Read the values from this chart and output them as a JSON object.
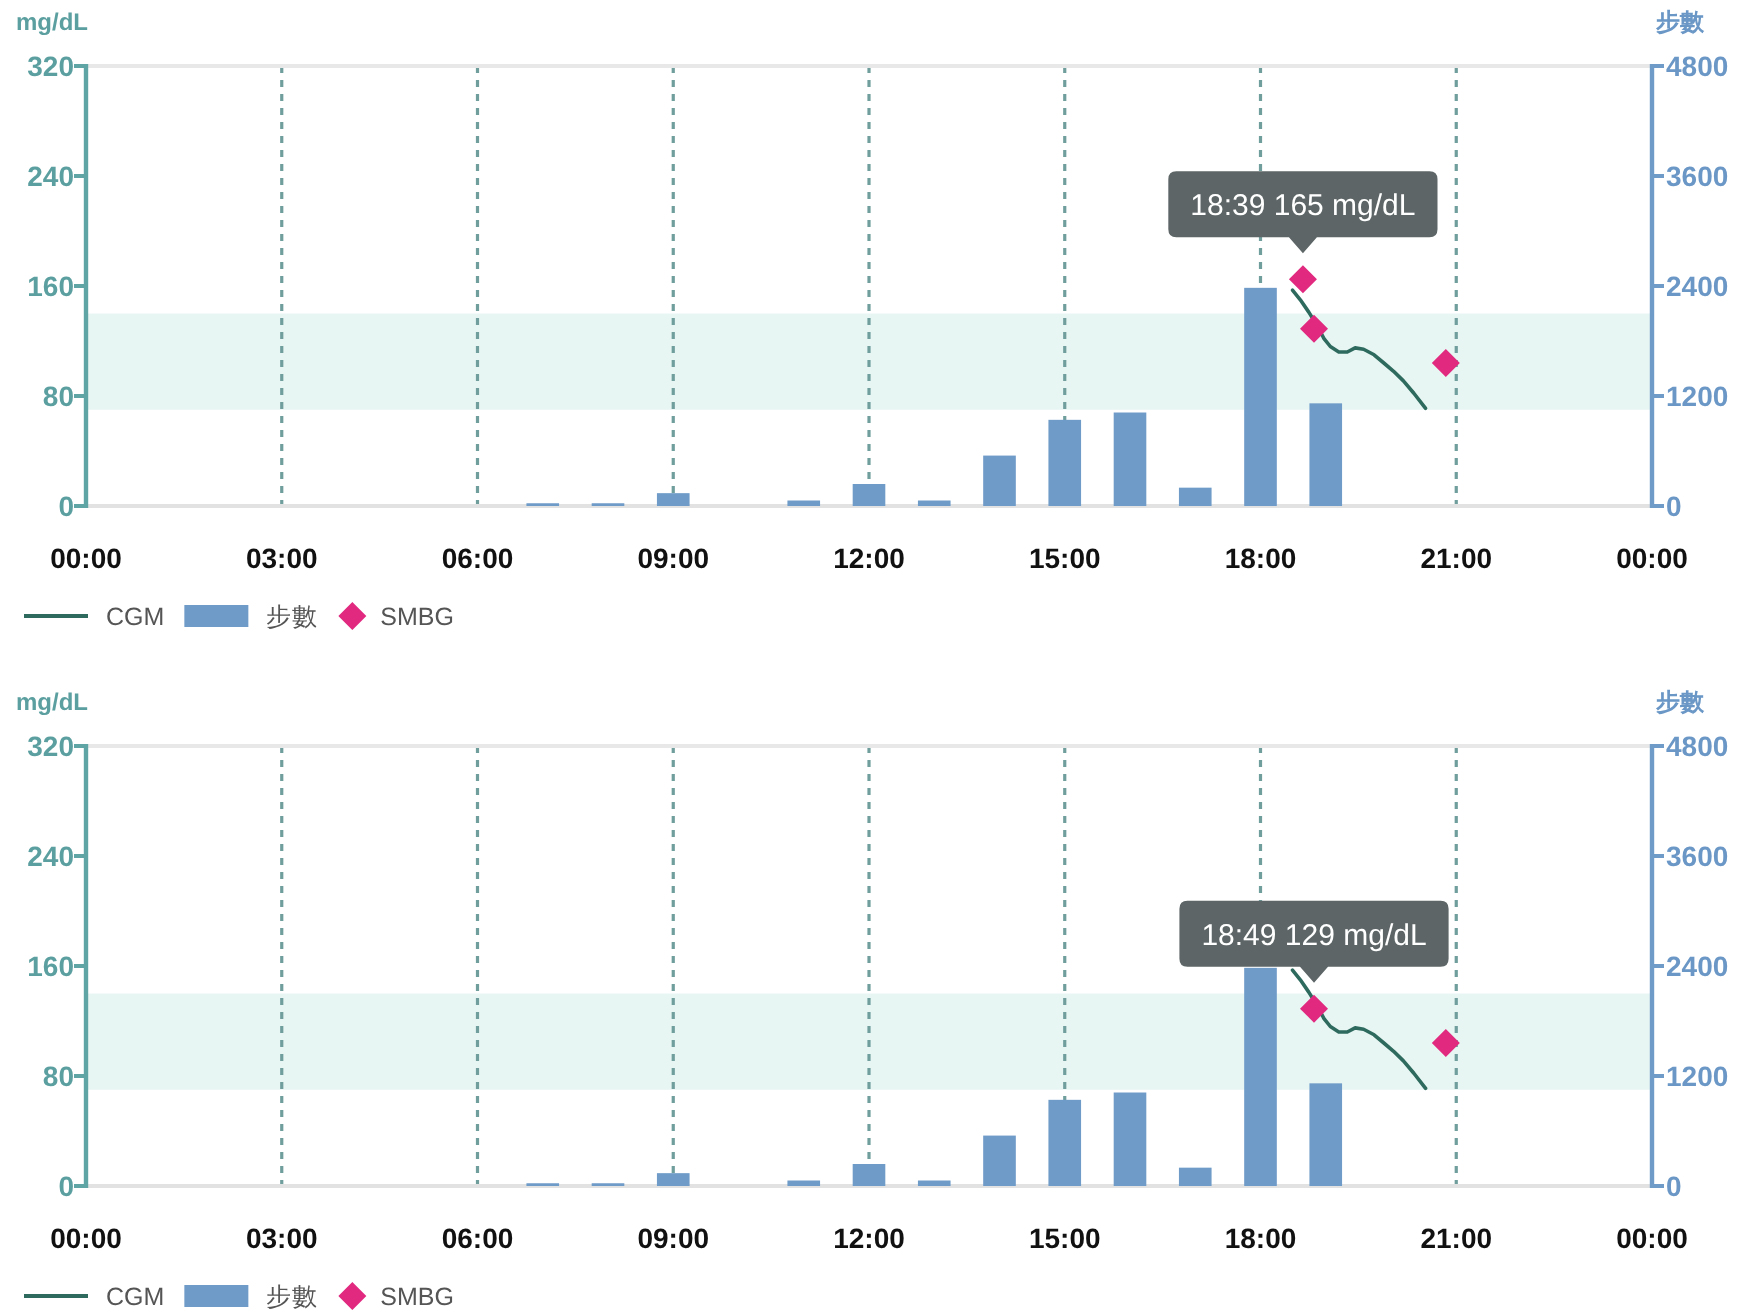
{
  "chart_data": [
    {
      "type": "line",
      "ylabel": "mg/dL",
      "y2label": "步數",
      "xlim": [
        0,
        24
      ],
      "xticks": [
        {
          "value": 0,
          "label": "00:00"
        },
        {
          "value": 3,
          "label": "03:00"
        },
        {
          "value": 6,
          "label": "06:00"
        },
        {
          "value": 9,
          "label": "09:00"
        },
        {
          "value": 12,
          "label": "12:00"
        },
        {
          "value": 15,
          "label": "15:00"
        },
        {
          "value": 18,
          "label": "18:00"
        },
        {
          "value": 21,
          "label": "21:00"
        },
        {
          "value": 24,
          "label": "00:00"
        }
      ],
      "ylim": [
        0,
        320
      ],
      "yticks": [
        0,
        80,
        160,
        240,
        320
      ],
      "y2lim": [
        0,
        4800
      ],
      "y2ticks": [
        0,
        1200,
        2400,
        3600,
        4800
      ],
      "grid": "x",
      "legend": "bottom left",
      "bands": [
        {
          "axis": "y",
          "from": 70,
          "to": 140,
          "color": "#e8f6f3"
        }
      ],
      "annotations": [
        {
          "text": "18:39 165 mg/dL",
          "x": 18.65,
          "y": 165
        }
      ],
      "series": [
        {
          "name": "CGM",
          "color": "#2e6b5e",
          "x": [
            18.49,
            18.61,
            18.74,
            18.87,
            18.97,
            19.07,
            19.2,
            19.33,
            19.45,
            19.58,
            19.74,
            19.89,
            20.04,
            20.19,
            20.35,
            20.53
          ],
          "values": [
            157,
            150,
            141,
            131,
            122,
            116,
            112,
            112,
            115,
            114,
            110,
            104,
            98,
            91,
            82,
            71
          ]
        },
        {
          "name": "步數",
          "type": "bar",
          "axis": "y2",
          "color": "#6f9bc8",
          "x": [
            7,
            8,
            9,
            11,
            12,
            13,
            14,
            15,
            16,
            17,
            18,
            19
          ],
          "values": [
            30,
            30,
            140,
            60,
            240,
            60,
            550,
            940,
            1020,
            200,
            2380,
            1120
          ]
        },
        {
          "name": "SMBG",
          "type": "scatter",
          "marker": "diamond",
          "color": "#e0297f",
          "x": [
            18.65,
            18.82,
            20.84
          ],
          "values": [
            165,
            129,
            104
          ]
        }
      ]
    },
    {
      "type": "line",
      "ylabel": "mg/dL",
      "y2label": "步數",
      "xlim": [
        0,
        24
      ],
      "xticks": [
        {
          "value": 0,
          "label": "00:00"
        },
        {
          "value": 3,
          "label": "03:00"
        },
        {
          "value": 6,
          "label": "06:00"
        },
        {
          "value": 9,
          "label": "09:00"
        },
        {
          "value": 12,
          "label": "12:00"
        },
        {
          "value": 15,
          "label": "15:00"
        },
        {
          "value": 18,
          "label": "18:00"
        },
        {
          "value": 21,
          "label": "21:00"
        },
        {
          "value": 24,
          "label": "00:00"
        }
      ],
      "ylim": [
        0,
        320
      ],
      "yticks": [
        0,
        80,
        160,
        240,
        320
      ],
      "y2lim": [
        0,
        4800
      ],
      "y2ticks": [
        0,
        1200,
        2400,
        3600,
        4800
      ],
      "grid": "x",
      "legend": "bottom left",
      "bands": [
        {
          "axis": "y",
          "from": 70,
          "to": 140,
          "color": "#e8f6f3"
        }
      ],
      "annotations": [
        {
          "text": "18:49 129 mg/dL",
          "x": 18.82,
          "y": 129
        }
      ],
      "series": [
        {
          "name": "CGM",
          "color": "#2e6b5e",
          "x": [
            18.49,
            18.61,
            18.74,
            18.87,
            18.97,
            19.07,
            19.2,
            19.33,
            19.45,
            19.58,
            19.74,
            19.89,
            20.04,
            20.19,
            20.35,
            20.53
          ],
          "values": [
            157,
            150,
            141,
            131,
            122,
            116,
            112,
            112,
            115,
            114,
            110,
            104,
            98,
            91,
            82,
            71
          ]
        },
        {
          "name": "步數",
          "type": "bar",
          "axis": "y2",
          "color": "#6f9bc8",
          "x": [
            7,
            8,
            9,
            11,
            12,
            13,
            14,
            15,
            16,
            17,
            18,
            19
          ],
          "values": [
            30,
            30,
            140,
            60,
            240,
            60,
            550,
            940,
            1020,
            200,
            2380,
            1120
          ]
        },
        {
          "name": "SMBG",
          "type": "scatter",
          "marker": "diamond",
          "color": "#e0297f",
          "x": [
            18.82,
            20.84
          ],
          "values": [
            129,
            104
          ]
        }
      ]
    }
  ]
}
